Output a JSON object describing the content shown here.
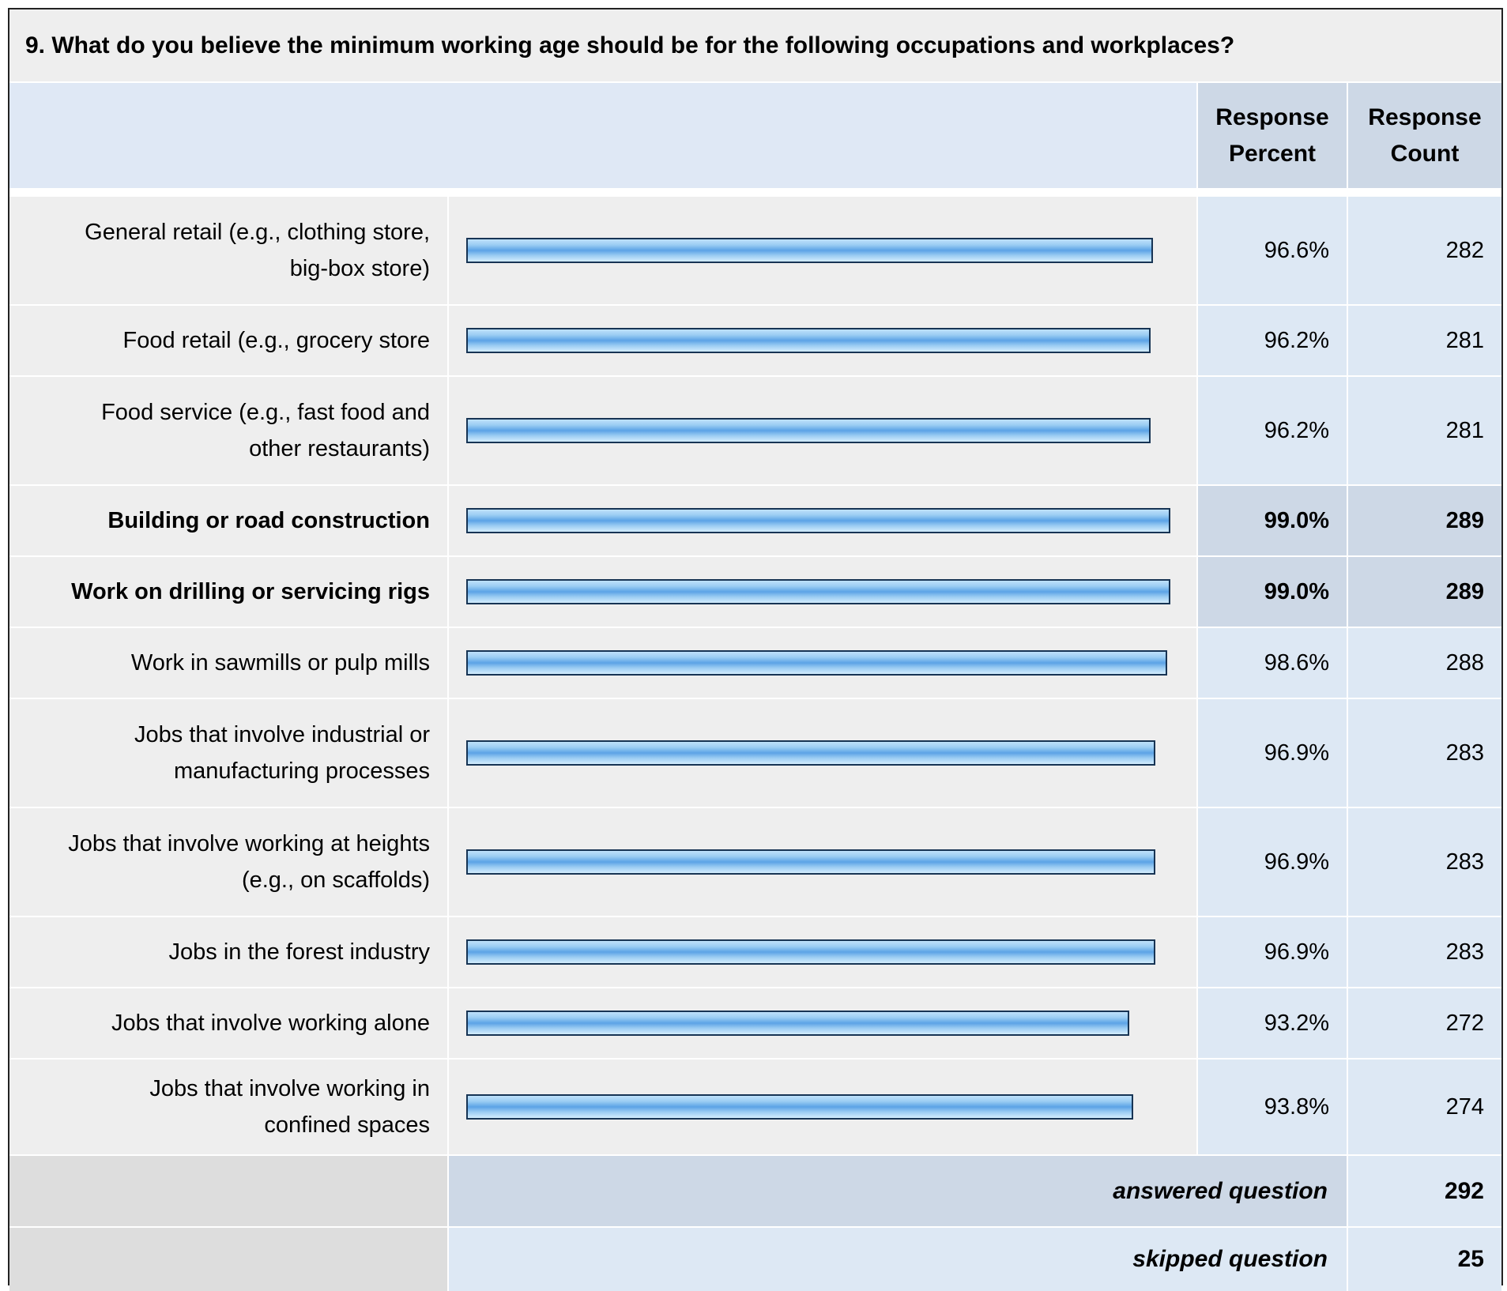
{
  "question": "9. What do you believe the minimum working age should be for the following occupations and workplaces?",
  "headers": {
    "percent": [
      "Response",
      "Percent"
    ],
    "count": [
      "Response",
      "Count"
    ]
  },
  "chart_data": {
    "type": "bar",
    "orientation": "horizontal",
    "title": "9. What do you believe the minimum working age should be for the following occupations and workplaces?",
    "categories": [
      [
        "General retail (e.g., clothing store,",
        "big-box store)"
      ],
      [
        "Food retail (e.g., grocery store"
      ],
      [
        "Food service (e.g., fast food and",
        "other restaurants)"
      ],
      [
        "Building or road construction"
      ],
      [
        "Work on drilling or servicing rigs"
      ],
      [
        "Work in sawmills or pulp mills"
      ],
      [
        "Jobs that involve industrial or",
        "manufacturing processes"
      ],
      [
        "Jobs that involve working at heights",
        "(e.g., on scaffolds)"
      ],
      [
        "Jobs in the forest industry"
      ],
      [
        "Jobs that involve working alone"
      ],
      [
        "Jobs that involve working in",
        "confined spaces"
      ]
    ],
    "values": [
      96.6,
      96.2,
      96.2,
      99.0,
      99.0,
      98.6,
      96.9,
      96.9,
      96.9,
      93.2,
      93.8
    ],
    "percent_labels": [
      "96.6%",
      "96.2%",
      "96.2%",
      "99.0%",
      "99.0%",
      "98.6%",
      "96.9%",
      "96.9%",
      "96.9%",
      "93.2%",
      "93.8%"
    ],
    "counts": [
      "282",
      "281",
      "281",
      "289",
      "289",
      "288",
      "283",
      "283",
      "283",
      "272",
      "274"
    ],
    "highlighted": [
      false,
      false,
      false,
      true,
      true,
      false,
      false,
      false,
      false,
      false,
      false
    ],
    "xlim": [
      0,
      100
    ],
    "bar_color": "#7ab8ee",
    "bar_border": "#173454"
  },
  "footer": {
    "answered": {
      "label": "answered question",
      "value": "292"
    },
    "skipped": {
      "label": "skipped question",
      "value": "25"
    }
  },
  "colors": {
    "label_bg": "#eeeeee",
    "header_bg": "#dfe8f5",
    "value_bg": "#dde8f4",
    "highlight_bg": "#cdd8e6"
  }
}
